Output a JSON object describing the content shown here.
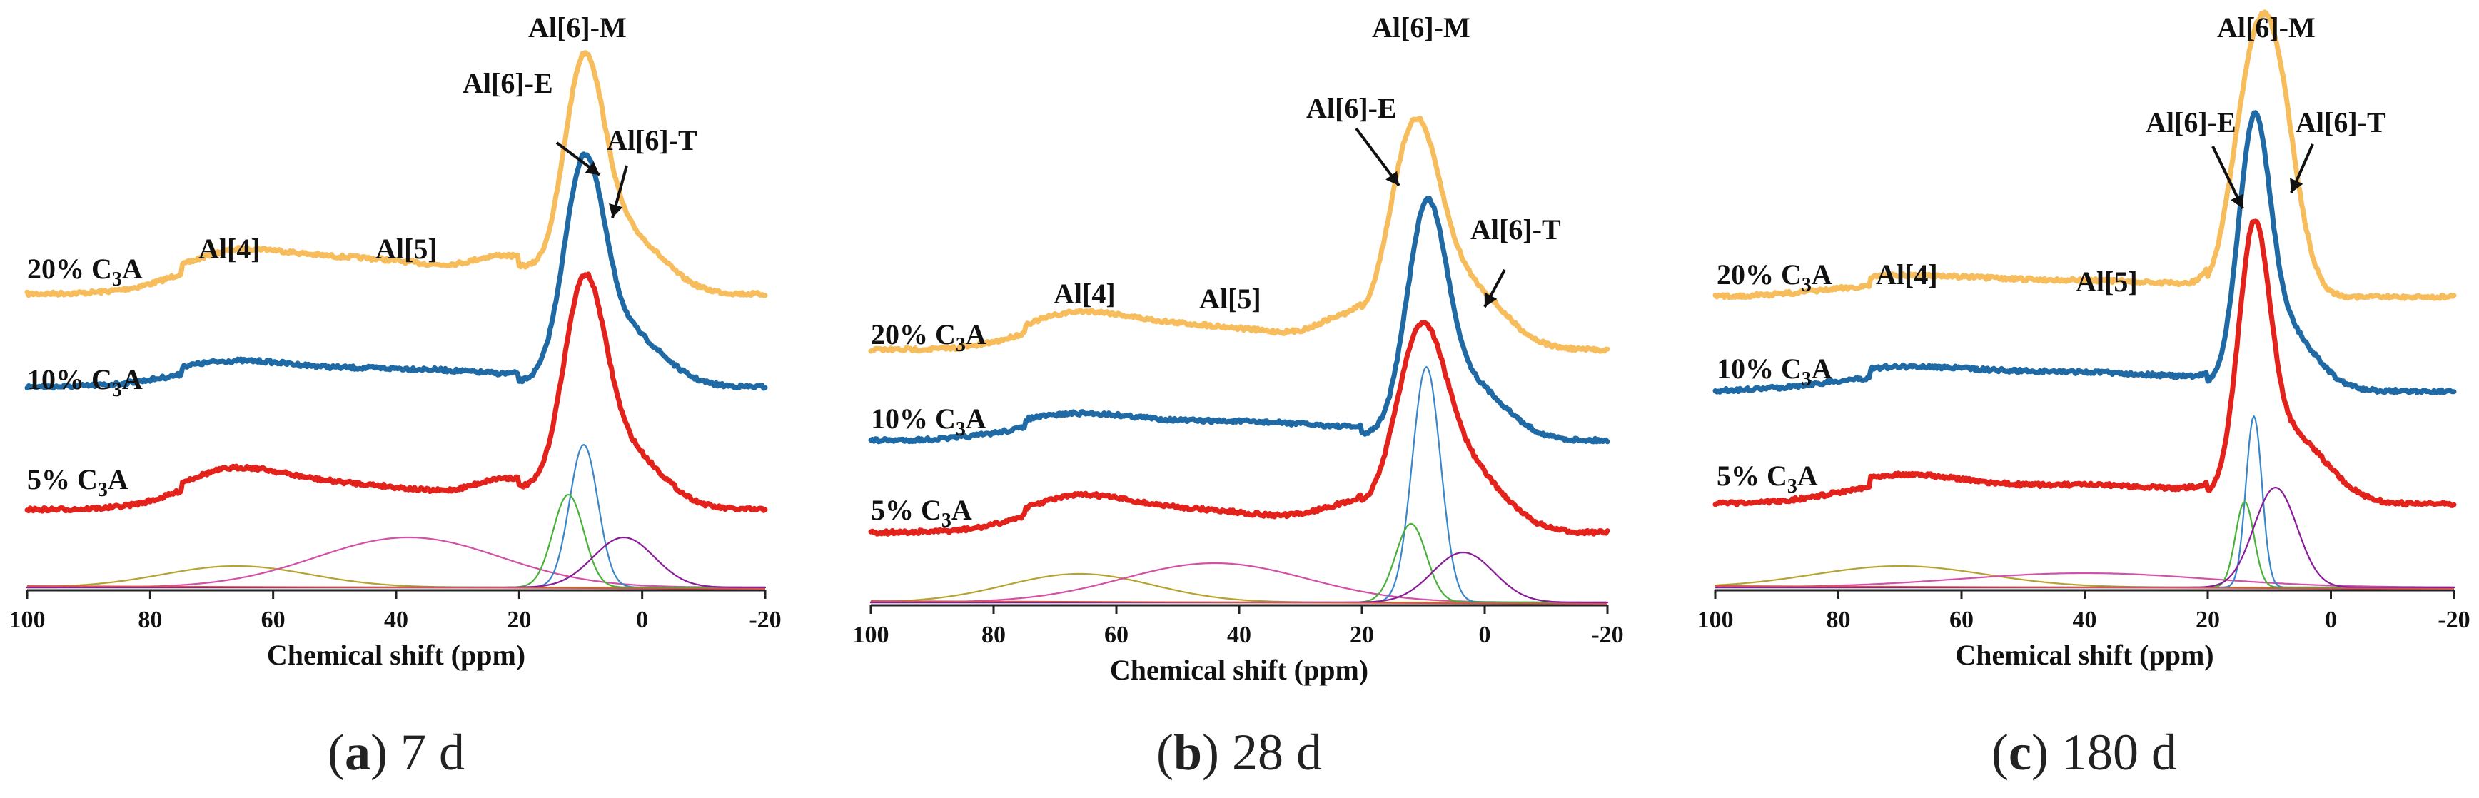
{
  "figure": {
    "panels": [
      {
        "letter": "a",
        "caption_rest": " 7 d"
      },
      {
        "letter": "b",
        "caption_rest": " 28 d"
      },
      {
        "letter": "c",
        "caption_rest": " 180 d"
      }
    ]
  },
  "colors": {
    "20%": "#f7bd5c",
    "10%": "#1f6aa5",
    "5%": "#e3221c",
    "fit_olive": "#b5a22f",
    "fit_magenta": "#d34fa8",
    "fit_teal": "#3a86c8",
    "fit_green": "#49b13a",
    "fit_purple": "#8a1c9a",
    "fit_red_base": "#d9534f"
  },
  "chart_data": [
    {
      "type": "line",
      "xlabel": "Chemical shift (ppm)",
      "xlim": [
        100,
        -20
      ],
      "xticks": [
        100,
        80,
        60,
        40,
        20,
        0,
        -20
      ],
      "annotations": [
        "Al[6]-M",
        "Al[6]-E",
        "Al[6]-T",
        "Al[4]",
        "Al[5]"
      ],
      "series": [
        {
          "name": "20% C3A",
          "peaks": [
            [
              67,
              0.1,
              8
            ],
            [
              55,
              0.09,
              15
            ],
            [
              38,
              0.07,
              15
            ],
            [
              22,
              0.1,
              5
            ],
            [
              9.5,
              1.0,
              3.2
            ],
            [
              3,
              0.3,
              6
            ]
          ]
        },
        {
          "name": "10% C3A",
          "peaks": [
            [
              67,
              0.08,
              10
            ],
            [
              40,
              0.05,
              15
            ],
            [
              9.5,
              1.0,
              3.2
            ],
            [
              3,
              0.28,
              6
            ]
          ]
        },
        {
          "name": "5% C3A",
          "peaks": [
            [
              67,
              0.12,
              8
            ],
            [
              50,
              0.09,
              15
            ],
            [
              22,
              0.1,
              5
            ],
            [
              9.5,
              1.0,
              3.4
            ],
            [
              3,
              0.3,
              6
            ]
          ]
        }
      ],
      "fits": [
        {
          "center": 66,
          "height": 0.3,
          "width": 12
        },
        {
          "center": 38,
          "height": 0.18,
          "width": 15
        },
        {
          "center": 9.5,
          "height": 1.0,
          "width": 2.3
        },
        {
          "center": 12,
          "height": 0.4,
          "width": 2.5
        },
        {
          "center": 3,
          "height": 0.2,
          "width": 5
        }
      ]
    },
    {
      "type": "line",
      "xlabel": "Chemical shift (ppm)",
      "xlim": [
        100,
        -20
      ],
      "xticks": [
        100,
        80,
        60,
        40,
        20,
        0,
        -20
      ],
      "annotations": [
        "Al[6]-M",
        "Al[6]-E",
        "Al[6]-T",
        "Al[4]",
        "Al[5]"
      ],
      "series": [
        {
          "name": "20% C3A",
          "peaks": [
            [
              67,
              0.1,
              8
            ],
            [
              50,
              0.08,
              15
            ],
            [
              23,
              0.1,
              4
            ],
            [
              11.5,
              1.0,
              4.0
            ],
            [
              3,
              0.3,
              6
            ]
          ]
        },
        {
          "name": "10% C3A",
          "peaks": [
            [
              67,
              0.08,
              10
            ],
            [
              40,
              0.05,
              15
            ],
            [
              9.5,
              1.0,
              3.2
            ],
            [
              3,
              0.28,
              6
            ]
          ]
        },
        {
          "name": "5% C3A",
          "peaks": [
            [
              67,
              0.12,
              8
            ],
            [
              50,
              0.09,
              15
            ],
            [
              22,
              0.1,
              5
            ],
            [
              10.5,
              1.0,
              4.0
            ],
            [
              3,
              0.35,
              6
            ]
          ]
        }
      ],
      "fits": [
        {
          "center": 66,
          "height": 0.3,
          "width": 12
        },
        {
          "center": 44,
          "height": 0.14,
          "width": 15
        },
        {
          "center": 9.5,
          "height": 1.0,
          "width": 2.3
        },
        {
          "center": 12,
          "height": 0.4,
          "width": 2.5
        },
        {
          "center": 3.5,
          "height": 0.2,
          "width": 5
        }
      ]
    },
    {
      "type": "line",
      "xlabel": "Chemical shift (ppm)",
      "xlim": [
        100,
        -20
      ],
      "xticks": [
        100,
        80,
        60,
        40,
        20,
        0,
        -20
      ],
      "annotations": [
        "Al[6]-M",
        "Al[6]-E",
        "Al[6]-T",
        "Al[4]",
        "Al[5]"
      ],
      "series": [
        {
          "name": "20% C3A",
          "peaks": [
            [
              70,
              0.05,
              12
            ],
            [
              40,
              0.03,
              15
            ],
            [
              14,
              0.5,
              3
            ],
            [
              9.5,
              1.0,
              3.5
            ]
          ]
        },
        {
          "name": "10% C3A",
          "peaks": [
            [
              70,
              0.06,
              12
            ],
            [
              40,
              0.04,
              15
            ],
            [
              12.5,
              1.0,
              2.5
            ],
            [
              8,
              0.28,
              5
            ]
          ]
        },
        {
          "name": "5% C3A",
          "peaks": [
            [
              70,
              0.08,
              10
            ],
            [
              40,
              0.04,
              15
            ],
            [
              12.5,
              1.0,
              2.5
            ],
            [
              7,
              0.3,
              6
            ]
          ]
        }
      ],
      "fits": [
        {
          "center": 70,
          "height": 0.2,
          "width": 14
        },
        {
          "center": 40,
          "height": 0.08,
          "width": 20
        },
        {
          "center": 12.5,
          "height": 1.0,
          "width": 1.3
        },
        {
          "center": 14,
          "height": 0.3,
          "width": 1.5
        },
        {
          "center": 9,
          "height": 0.45,
          "width": 3.5
        }
      ]
    }
  ]
}
